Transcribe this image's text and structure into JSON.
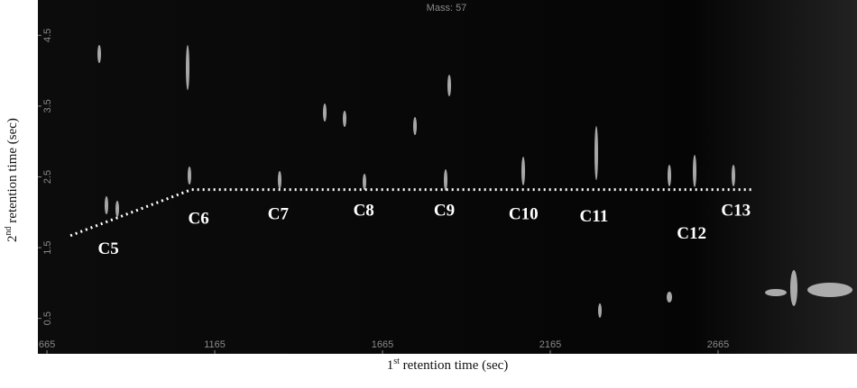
{
  "chart_data": {
    "type": "contour",
    "title": "Mass: 57",
    "x_label": {
      "ordinal": "1",
      "suffix": "st",
      "text": " retention time (sec)"
    },
    "y_label": {
      "ordinal": "2",
      "suffix": "nd",
      "text": " retention time (sec)"
    },
    "xlim": [
      638,
      3079
    ],
    "ylim": [
      0,
      5
    ],
    "xticks": [
      665,
      1165,
      1665,
      2165,
      2665
    ],
    "yticks": [
      0.5,
      1.5,
      2.5,
      3.5,
      4.5
    ],
    "trend_line": {
      "color": "#ffffff",
      "x": [
        735,
        1095,
        2771
      ],
      "y": [
        1.67,
        2.32,
        2.32
      ]
    },
    "annotations": [
      {
        "text": "C5",
        "x": 848,
        "y": 1.41
      },
      {
        "text": "C6",
        "x": 1117,
        "y": 1.84
      },
      {
        "text": "C7",
        "x": 1354,
        "y": 1.9
      },
      {
        "text": "C8",
        "x": 1609,
        "y": 1.95
      },
      {
        "text": "C9",
        "x": 1849,
        "y": 1.95
      },
      {
        "text": "C10",
        "x": 2085,
        "y": 1.9
      },
      {
        "text": "C11",
        "x": 2295,
        "y": 1.87
      },
      {
        "text": "C12",
        "x": 2586,
        "y": 1.63
      },
      {
        "text": "C13",
        "x": 2718,
        "y": 1.95
      }
    ]
  }
}
